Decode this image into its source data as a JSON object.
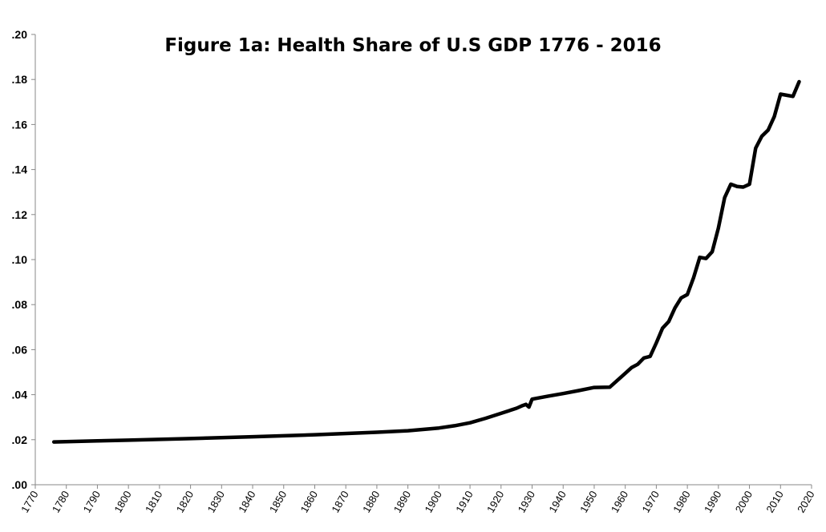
{
  "chart_data": {
    "type": "line",
    "title": "Figure 1a:  Health Share of U.S GDP  1776 - 2016",
    "xlabel": "",
    "ylabel": "",
    "xlim": [
      1770,
      2020
    ],
    "ylim": [
      0.0,
      0.2
    ],
    "x_ticks": [
      "1770",
      "1780",
      "1790",
      "1800",
      "1810",
      "1820",
      "1830",
      "1840",
      "1850",
      "1860",
      "1870",
      "1880",
      "1890",
      "1900",
      "1910",
      "1920",
      "1930",
      "1940",
      "1950",
      "1960",
      "1970",
      "1980",
      "1990",
      "2000",
      "2010",
      "2020"
    ],
    "y_ticks": [
      ".00",
      ".02",
      ".04",
      ".06",
      ".08",
      ".10",
      ".12",
      ".14",
      ".16",
      ".18",
      ".20"
    ],
    "grid": false,
    "legend": "none",
    "series": [
      {
        "color": "#000000",
        "x": [
          1776,
          1790,
          1800,
          1820,
          1840,
          1860,
          1880,
          1890,
          1900,
          1905,
          1910,
          1915,
          1920,
          1925,
          1927,
          1928,
          1929,
          1930,
          1935,
          1940,
          1945,
          1950,
          1955,
          1960,
          1962,
          1964,
          1966,
          1968,
          1970,
          1972,
          1974,
          1976,
          1978,
          1980,
          1982,
          1984,
          1986,
          1988,
          1990,
          1992,
          1994,
          1996,
          1998,
          2000,
          2002,
          2004,
          2006,
          2008,
          2010,
          2012,
          2014,
          2016
        ],
        "y": [
          0.019,
          0.0195,
          0.0198,
          0.0205,
          0.0213,
          0.0222,
          0.0233,
          0.024,
          0.0252,
          0.0262,
          0.0275,
          0.0295,
          0.0317,
          0.034,
          0.0352,
          0.0357,
          0.0345,
          0.038,
          0.0393,
          0.0405,
          0.0418,
          0.0432,
          0.0433,
          0.0495,
          0.052,
          0.0535,
          0.0563,
          0.057,
          0.063,
          0.0695,
          0.0725,
          0.0785,
          0.083,
          0.0845,
          0.092,
          0.101,
          0.1005,
          0.1035,
          0.114,
          0.1275,
          0.1335,
          0.1325,
          0.1322,
          0.1335,
          0.1495,
          0.1548,
          0.1575,
          0.1635,
          0.1735,
          0.173,
          0.1725,
          0.179
        ]
      }
    ]
  }
}
